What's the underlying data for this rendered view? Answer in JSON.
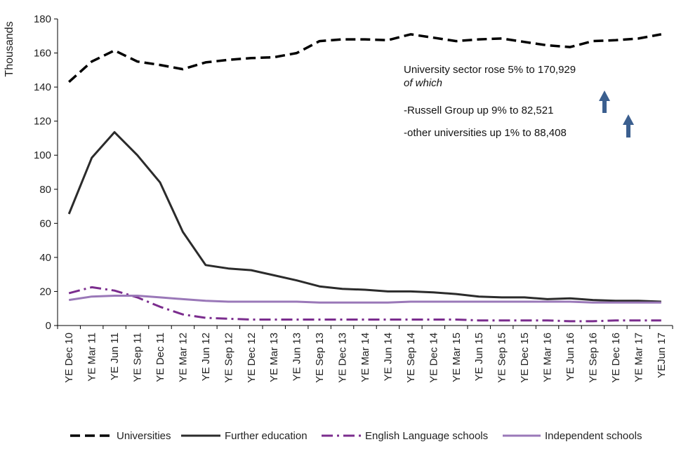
{
  "chart_data": {
    "type": "line",
    "title": "",
    "xlabel": "",
    "ylabel": "Thousands",
    "ylim": [
      0,
      180
    ],
    "yticks": [
      0,
      20,
      40,
      60,
      80,
      100,
      120,
      140,
      160,
      180
    ],
    "categories": [
      "YE Dec 10",
      "YE Mar 11",
      "YE Jun 11",
      "YE Sep 11",
      "YE Dec 11",
      "YE Mar 12",
      "YE Jun 12",
      "YE Sep 12",
      "YE Dec 12",
      "YE Mar 13",
      "YE Jun 13",
      "YE Sep 13",
      "YE Dec 13",
      "YE Mar 14",
      "YE Jun 14",
      "YE Sep 14",
      "YE Dec 14",
      "YE Mar 15",
      "YE Jun 15",
      "YE Sep 15",
      "YE Dec 15",
      "YE Mar 16",
      "YE Jun 16",
      "YE Sep 16",
      "YE Dec 16",
      "YE Mar 17",
      "YEJun 17"
    ],
    "series": [
      {
        "name": "Universities",
        "color": "#000000",
        "dash": "long-dash",
        "values": [
          143,
          155,
          161.5,
          155,
          153,
          150.5,
          154.5,
          156,
          157,
          157.5,
          160,
          167,
          168,
          168,
          167.5,
          171,
          169,
          167,
          168,
          168.5,
          166.5,
          164.5,
          163.5,
          167,
          167.5,
          168.5,
          171
        ]
      },
      {
        "name": "Further education",
        "color": "#2b2b2b",
        "dash": "solid",
        "values": [
          65.5,
          98.5,
          113.5,
          100,
          84,
          55,
          35.5,
          33.5,
          32.5,
          29.5,
          26.5,
          23,
          21.5,
          21,
          20,
          20,
          19.5,
          18.5,
          17,
          16.5,
          16.5,
          15.5,
          16,
          15,
          14.5,
          14.5,
          14
        ]
      },
      {
        "name": "English Language schools",
        "color": "#7b2d8e",
        "dash": "dash-dot",
        "values": [
          19,
          22.5,
          20.5,
          16.5,
          11,
          6.5,
          4.5,
          4,
          3.5,
          3.5,
          3.5,
          3.5,
          3.5,
          3.5,
          3.5,
          3.5,
          3.5,
          3.5,
          3,
          3,
          3,
          3,
          2.5,
          2.5,
          3,
          3,
          3
        ]
      },
      {
        "name": "Independent schools",
        "color": "#9a78b8",
        "dash": "solid",
        "values": [
          15,
          17,
          17.5,
          17.5,
          16.5,
          15.5,
          14.5,
          14,
          14,
          14,
          14,
          13.5,
          13.5,
          13.5,
          13.5,
          14,
          14,
          14,
          14,
          14,
          14,
          14,
          14,
          13.5,
          13.5,
          13.5,
          13.5
        ]
      }
    ],
    "legend_position": "bottom",
    "annotations": {
      "line1": "University sector rose  5% to 170,929",
      "line2": "of which",
      "line3": "-Russell Group up 9% to 82,521",
      "line4": "-other universities up 1% to 88,408"
    },
    "arrow_color": "#3b5f8f"
  }
}
